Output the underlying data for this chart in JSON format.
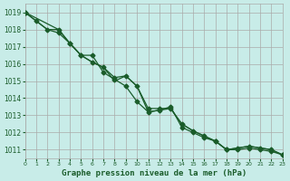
{
  "title": "Graphe pression niveau de la mer (hPa)",
  "bg_color": "#c8ece8",
  "grid_color": "#aaaaaa",
  "line_color": "#1a5c2a",
  "xlim": [
    0,
    23
  ],
  "ylim": [
    1010.5,
    1019.5
  ],
  "xticks": [
    0,
    1,
    2,
    3,
    4,
    5,
    6,
    7,
    8,
    9,
    10,
    11,
    12,
    13,
    14,
    15,
    16,
    17,
    18,
    19,
    20,
    21,
    22,
    23
  ],
  "yticks": [
    1011,
    1012,
    1013,
    1014,
    1015,
    1016,
    1017,
    1018,
    1019
  ],
  "line1_x": [
    0,
    1,
    2,
    3,
    4,
    5,
    6,
    7,
    8,
    9,
    10,
    11,
    12,
    13,
    14,
    15,
    16,
    17,
    18,
    19,
    20,
    21,
    22,
    23
  ],
  "line1": [
    1019.0,
    1018.5,
    1018.0,
    1018.0,
    1017.2,
    1016.5,
    1016.1,
    1015.8,
    1015.0,
    1015.3,
    1014.7,
    1013.2,
    1013.3,
    1013.4,
    1012.5,
    1012.1,
    1011.8,
    1011.5,
    1011.0,
    1011.1,
    1011.2,
    1011.1,
    1011.0,
    1010.7
  ],
  "line2_x": [
    0,
    1,
    2,
    3,
    4,
    5,
    6,
    7,
    8,
    9,
    10,
    11,
    12,
    13,
    14,
    15,
    16,
    17,
    18,
    19,
    20,
    21,
    22,
    23
  ],
  "line2": [
    1019.0,
    1018.5,
    1018.0,
    1017.8,
    1017.2,
    1016.5,
    1016.1,
    1015.8,
    1015.2,
    1015.3,
    1014.7,
    1013.4,
    1013.4,
    1013.4,
    1012.5,
    1012.1,
    1011.8,
    1011.5,
    1011.0,
    1011.1,
    1011.2,
    1011.1,
    1011.0,
    1010.7
  ],
  "line3_x": [
    0,
    3,
    4,
    5,
    6,
    7,
    8,
    9,
    10,
    11,
    12,
    13,
    14,
    15,
    16,
    17,
    18,
    19,
    20,
    21,
    22,
    23
  ],
  "line3": [
    1019.0,
    1018.0,
    1017.2,
    1016.5,
    1016.5,
    1015.5,
    1015.1,
    1014.7,
    1013.8,
    1013.2,
    1013.3,
    1013.5,
    1012.3,
    1012.0,
    1011.7,
    1011.5,
    1011.0,
    1011.0,
    1011.1,
    1011.0,
    1010.9,
    1010.7
  ],
  "marker": "D",
  "markersize": 2.5,
  "linewidth": 0.9
}
